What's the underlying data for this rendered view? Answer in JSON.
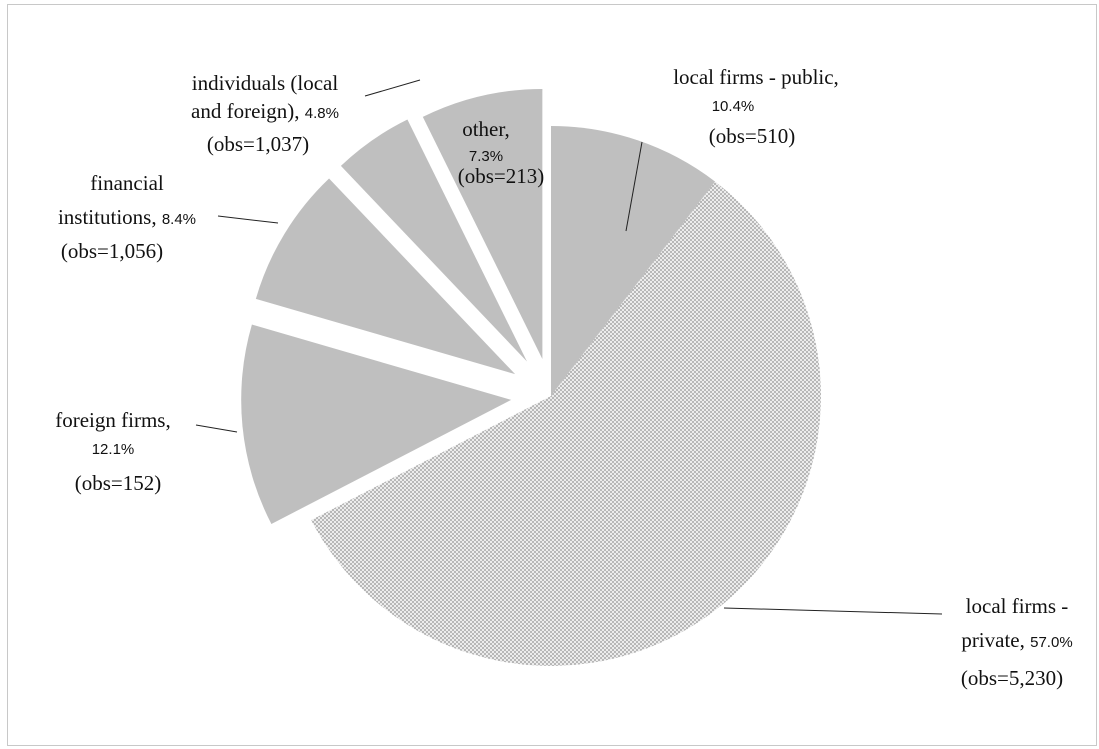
{
  "chart_data": {
    "type": "pie",
    "exploded": true,
    "slices": [
      {
        "name": "local firms - public",
        "value": 10.4,
        "pct_label": "10.4%",
        "obs_label": "(obs=510)",
        "fill": "solid"
      },
      {
        "name": "local firms - private",
        "value": 57.0,
        "pct_label": "57.0%",
        "obs_label": "(obs=5,230)",
        "fill": "dotted"
      },
      {
        "name": "foreign firms",
        "value": 12.1,
        "pct_label": "12.1%",
        "obs_label": "(obs=152)",
        "fill": "solid"
      },
      {
        "name": "financial institutions",
        "value": 8.4,
        "pct_label": "8.4%",
        "obs_label": "(obs=1,056)",
        "fill": "solid"
      },
      {
        "name": "individuals (local and foreign)",
        "value": 4.8,
        "pct_label": "4.8%",
        "obs_label": "(obs=1,037)",
        "fill": "solid"
      },
      {
        "name": "other",
        "value": 7.3,
        "pct_label": "7.3%",
        "obs_label": "(obs=213)",
        "fill": "solid"
      }
    ],
    "label_lines": [
      [
        {
          "text": "local firms - public,",
          "style": "serif"
        }
      ],
      [
        {
          "text": "10.4%",
          "style": "sans"
        }
      ],
      [
        {
          "text": "(obs=510)",
          "style": "serif"
        }
      ],
      [
        {
          "text": "local firms -",
          "style": "serif"
        }
      ],
      [
        {
          "text": "private, ",
          "style": "serif"
        },
        {
          "text": "57.0%",
          "style": "sans"
        }
      ],
      [
        {
          "text": "(obs=5,230)",
          "style": "serif"
        }
      ],
      [
        {
          "text": "foreign firms,",
          "style": "serif"
        }
      ],
      [
        {
          "text": "12.1%",
          "style": "sans"
        }
      ],
      [
        {
          "text": "(obs=152)",
          "style": "serif"
        }
      ],
      [
        {
          "text": "financial",
          "style": "serif"
        }
      ],
      [
        {
          "text": "institutions, ",
          "style": "serif"
        },
        {
          "text": "8.4%",
          "style": "sans"
        }
      ],
      [
        {
          "text": "(obs=1,056)",
          "style": "serif"
        }
      ],
      [
        {
          "text": "individuals (local",
          "style": "serif"
        }
      ],
      [
        {
          "text": "and foreign), ",
          "style": "serif"
        },
        {
          "text": "4.8%",
          "style": "sans"
        }
      ],
      [
        {
          "text": "(obs=1,037)",
          "style": "serif"
        }
      ],
      [
        {
          "text": "other,",
          "style": "serif"
        }
      ],
      [
        {
          "text": "7.3%",
          "style": "sans"
        }
      ],
      [
        {
          "text": "(obs=213)",
          "style": "serif"
        }
      ]
    ],
    "colors": {
      "solid_fill": "#bfbfbf",
      "dotted_fill": "#ececec",
      "dotted_dot": "#8c8c8c",
      "text": "#111111"
    },
    "legend": "none",
    "grid": false
  }
}
